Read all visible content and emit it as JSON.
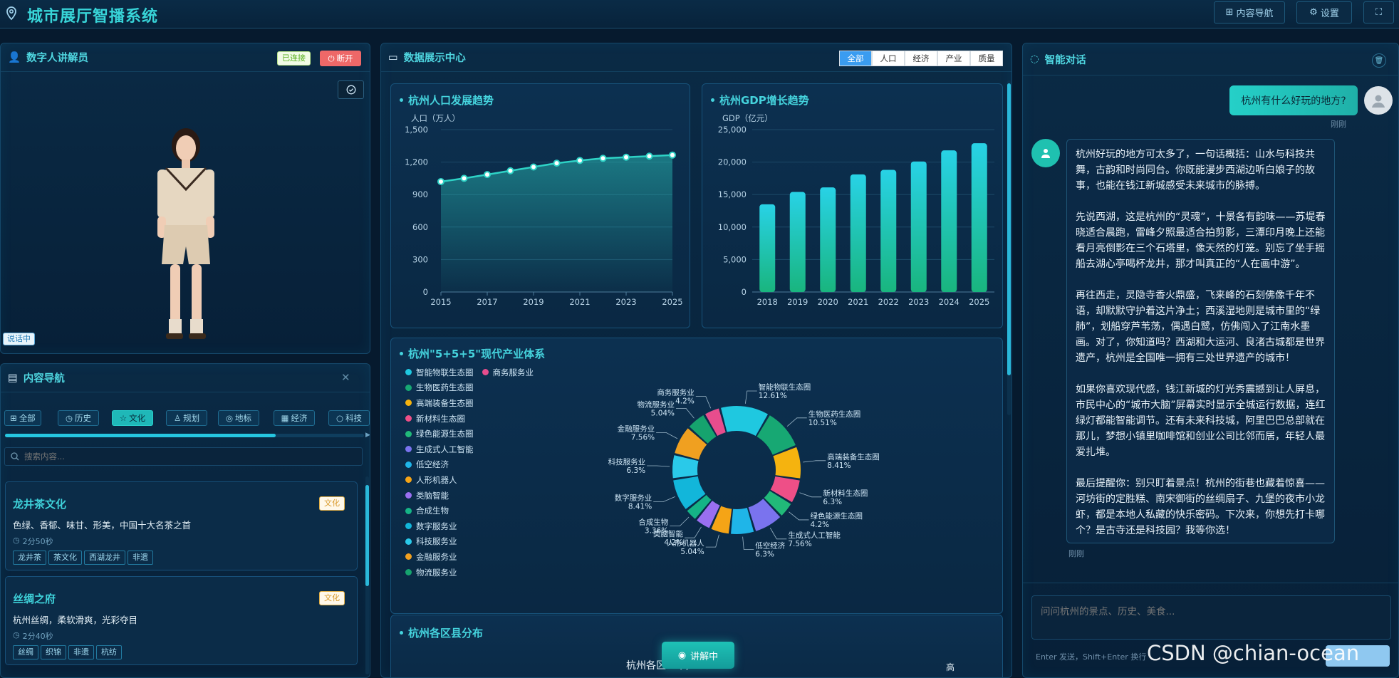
{
  "app": {
    "title": "城市展厅智播系统",
    "nav_btn": "内容导航",
    "settings_btn": "设置"
  },
  "presenter": {
    "title": "数字人讲解员",
    "status": "已连接",
    "disconnect": "断开",
    "speaking": "说话中"
  },
  "content_nav": {
    "title": "内容导航",
    "tabs": [
      "全部",
      "历史",
      "文化",
      "规划",
      "地标",
      "经济",
      "科技"
    ],
    "active_tab": "文化",
    "search_placeholder": "搜索内容...",
    "cards": [
      {
        "title": "龙井茶文化",
        "badge": "文化",
        "desc": "色绿、香郁、味甘、形美，中国十大名茶之首",
        "duration": "2分50秒",
        "tags": [
          "龙井茶",
          "茶文化",
          "西湖龙井",
          "非遗"
        ]
      },
      {
        "title": "丝绸之府",
        "badge": "文化",
        "desc": "杭州丝绸，柔软滑爽，光彩夺目",
        "duration": "2分40秒",
        "tags": [
          "丝绸",
          "织锦",
          "非遗",
          "杭纺"
        ]
      }
    ]
  },
  "data_center": {
    "title": "数据展示中心",
    "filters": [
      "全部",
      "人口",
      "经济",
      "产业",
      "质量"
    ],
    "active_filter": "全部",
    "explain_btn": "讲解中",
    "district_title": "杭州各区县分布",
    "district_chart_title": "杭州各区...年)",
    "district_right_label": "高"
  },
  "chart_data": [
    {
      "type": "line",
      "title": "杭州人口发展趋势",
      "ylabel": "人口（万人）",
      "ylim": [
        0,
        1500
      ],
      "yticks": [
        "0",
        "300",
        "600",
        "900",
        "1,200",
        "1,500"
      ],
      "xtick_labels": [
        "2015",
        "2017",
        "2019",
        "2021",
        "2023",
        "2025"
      ],
      "x": [
        2015,
        2016,
        2017,
        2018,
        2019,
        2020,
        2021,
        2022,
        2023,
        2024,
        2025
      ],
      "values": [
        1020,
        1050,
        1085,
        1120,
        1155,
        1190,
        1215,
        1235,
        1245,
        1255,
        1265
      ],
      "color": "#2ed3c6"
    },
    {
      "type": "bar",
      "title": "杭州GDP增长趋势",
      "ylabel": "GDP（亿元）",
      "ylim": [
        0,
        25000
      ],
      "yticks": [
        "0",
        "5,000",
        "10,000",
        "15,000",
        "20,000",
        "25,000"
      ],
      "categories": [
        "2018",
        "2019",
        "2020",
        "2021",
        "2022",
        "2023",
        "2024",
        "2025"
      ],
      "values": [
        13500,
        15400,
        16100,
        18100,
        18800,
        20100,
        21800,
        22900
      ]
    },
    {
      "type": "pie",
      "title": "杭州\"5+5+5\"现代产业体系",
      "slices": [
        {
          "name": "智能物联生态圈",
          "value": 12.61,
          "color": "#1fc8e0"
        },
        {
          "name": "生物医药生态圈",
          "value": 10.51,
          "color": "#17a873"
        },
        {
          "name": "高端装备生态圈",
          "value": 8.41,
          "color": "#f5b30f"
        },
        {
          "name": "新材料生态圈",
          "value": 6.3,
          "color": "#ee4f87"
        },
        {
          "name": "绿色能源生态圈",
          "value": 4.2,
          "color": "#21b979"
        },
        {
          "name": "生成式人工智能",
          "value": 7.56,
          "color": "#7a73ee"
        },
        {
          "name": "低空经济",
          "value": 6.3,
          "color": "#1fb5e8"
        },
        {
          "name": "人形机器人",
          "value": 5.04,
          "color": "#f5a416"
        },
        {
          "name": "类脑智能",
          "value": 4.2,
          "color": "#9a6ff0"
        },
        {
          "name": "合成生物",
          "value": 3.36,
          "color": "#15b486"
        },
        {
          "name": "数字服务业",
          "value": 8.41,
          "color": "#12b6da"
        },
        {
          "name": "科技服务业",
          "value": 6.3,
          "color": "#2ac9e9"
        },
        {
          "name": "金融服务业",
          "value": 7.56,
          "color": "#f0a020"
        },
        {
          "name": "物流服务业",
          "value": 5.04,
          "color": "#16a36e"
        },
        {
          "name": "商务服务业",
          "value": 4.2,
          "color": "#e74d8d"
        }
      ],
      "legend": [
        "智能物联生态圈",
        "商务服务业",
        "生物医药生态圈",
        "高端装备生态圈",
        "新材料生态圈",
        "绿色能源生态圈",
        "生成式人工智能",
        "低空经济",
        "人形机器人",
        "类脑智能",
        "合成生物",
        "数字服务业",
        "科技服务业",
        "金融服务业",
        "物流服务业"
      ]
    }
  ],
  "chat": {
    "title": "智能对话",
    "user_message": "杭州有什么好玩的地方?",
    "user_time": "刚刚",
    "bot_paragraphs": [
      "杭州好玩的地方可太多了，一句话概括：山水与科技共舞，古韵和时尚同台。你既能漫步西湖边听白娘子的故事，也能在钱江新城感受未来城市的脉搏。",
      "先说西湖，这是杭州的“灵魂”，十景各有韵味——苏堤春晓适合晨跑，雷峰夕照最适合拍剪影，三潭印月晚上还能看月亮倒影在三个石塔里，像天然的灯笼。别忘了坐手摇船去湖心亭喝杯龙井，那才叫真正的“人在画中游”。",
      "再往西走，灵隐寺香火鼎盛，飞来峰的石刻佛像千年不语，却默默守护着这片净土；西溪湿地则是城市里的“绿肺”，划船穿芦苇荡，偶遇白鹭，仿佛闯入了江南水墨画。对了，你知道吗？西湖和大运河、良渚古城都是世界遗产，杭州是全国唯一拥有三处世界遗产的城市！",
      "如果你喜欢现代感，钱江新城的灯光秀震撼到让人屏息，市民中心的“城市大脑”屏幕实时显示全城运行数据，连红绿灯都能智能调节。还有未来科技城，阿里巴巴总部就在那儿，梦想小镇里咖啡馆和创业公司比邻而居，年轻人最爱扎堆。",
      "最后提醒你：别只盯着景点！杭州的街巷也藏着惊喜——河坊街的定胜糕、南宋御街的丝绸扇子、九堡的夜市小龙虾，都是本地人私藏的快乐密码。下次来，你想先打卡哪个？是古寺还是科技园？我等你选！"
    ],
    "bot_time": "刚刚",
    "input_placeholder": "问问杭州的景点、历史、美食...",
    "input_hint": "Enter 发送，Shift+Enter 换行"
  },
  "watermark": "CSDN @chian-ocean"
}
